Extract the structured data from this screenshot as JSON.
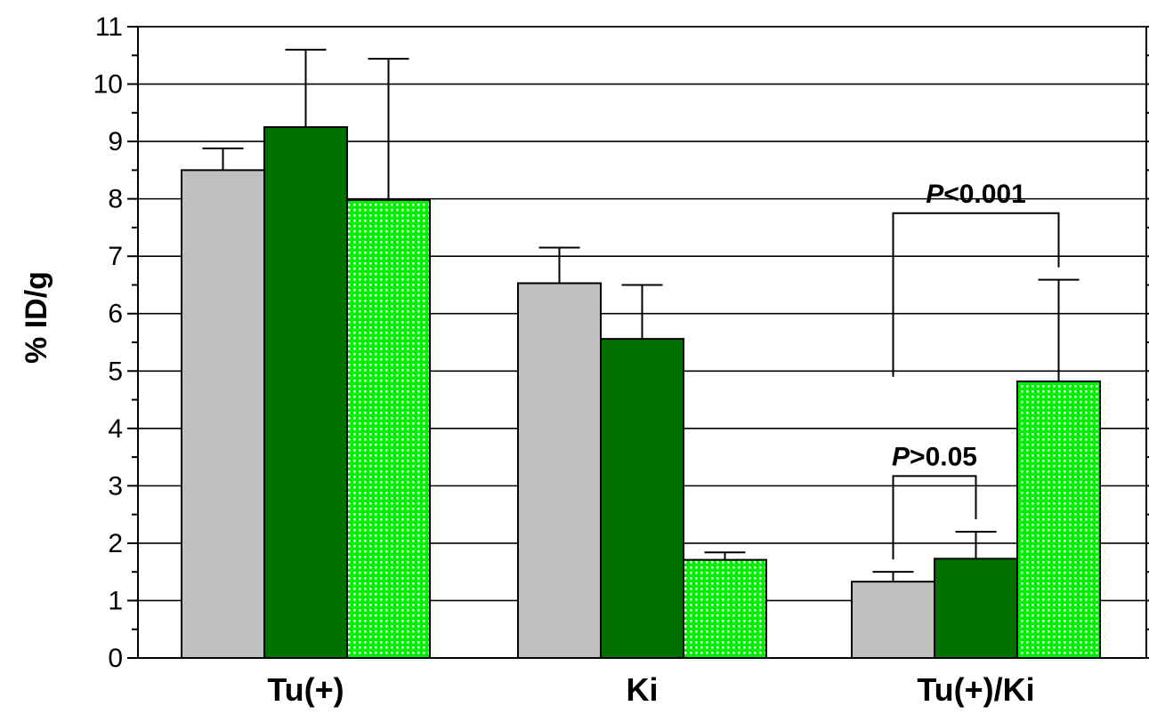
{
  "chart_data": {
    "type": "bar",
    "ylabel": "% ID/g",
    "ylim": [
      0,
      11
    ],
    "yticks": [
      0,
      1,
      2,
      3,
      4,
      5,
      6,
      7,
      8,
      9,
      10,
      11
    ],
    "grid": true,
    "categories": [
      "Tu(+)",
      "Ki",
      "Tu(+)/Ki"
    ],
    "series": [
      {
        "color": "#c0c0c0",
        "pattern": "solid",
        "values": [
          8.5,
          6.53,
          1.33
        ],
        "errors": [
          0.38,
          0.62,
          0.17
        ]
      },
      {
        "color": "#007000",
        "pattern": "solid",
        "values": [
          9.25,
          5.56,
          1.73
        ],
        "errors": [
          1.35,
          0.94,
          0.47
        ]
      },
      {
        "color": "#00ee00",
        "pattern": "dotted",
        "values": [
          7.98,
          1.71,
          4.82
        ],
        "errors": [
          2.46,
          0.13,
          1.77
        ]
      }
    ],
    "annotations": [
      {
        "category": "Tu(+)/Ki",
        "from_series": 0,
        "to_series": 1,
        "bracket_y": 3.17,
        "italic": "P",
        "rest": ">0.05"
      },
      {
        "category": "Tu(+)/Ki",
        "from_series": 0,
        "to_series": 2,
        "bracket_y": 7.75,
        "italic": "P",
        "rest": "<0.001"
      }
    ]
  }
}
